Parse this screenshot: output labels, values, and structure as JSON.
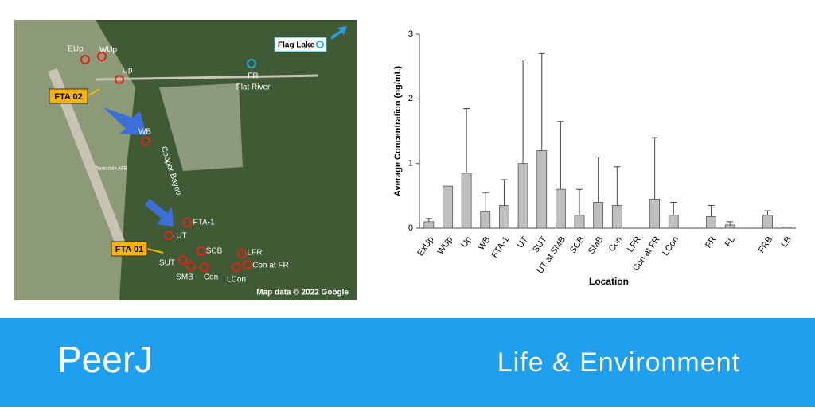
{
  "chart_data": {
    "type": "bar",
    "x_label": "Location",
    "y_label": "Average Concentration (ng/mL)",
    "categories": [
      "ExUp",
      "WUp",
      "Up",
      "WB",
      "FTA-1",
      "UT",
      "SUT",
      "UT at SMB",
      "SCB",
      "SMB",
      "Con",
      "LFR",
      "Con at FR",
      "LCon",
      null,
      "FR",
      "FL",
      null,
      "FRB",
      "LB"
    ],
    "values": [
      0.1,
      0.65,
      0.85,
      0.25,
      0.35,
      1.0,
      1.2,
      0.6,
      0.2,
      0.4,
      0.35,
      null,
      0.45,
      0.2,
      null,
      0.18,
      0.05,
      null,
      0.2,
      0.02
    ],
    "errors": [
      0.05,
      null,
      1.0,
      0.3,
      0.4,
      1.6,
      1.5,
      1.05,
      0.4,
      0.7,
      0.6,
      null,
      0.95,
      0.2,
      null,
      0.17,
      0.05,
      null,
      0.07,
      null
    ],
    "color": "#bfbfbf",
    "ylim": [
      0,
      3
    ],
    "yticks": [
      0,
      1,
      2,
      3
    ]
  },
  "map": {
    "labels": [
      "EUp",
      "WUp",
      "Up",
      "FTA 02",
      "WB",
      "Cooper Bayou",
      "Barksdale AFB",
      "FTA-1",
      "UT",
      "FTA 01",
      "SUT",
      "SMB",
      "SCB",
      "Con",
      "LFR",
      "Con at FR",
      "LCon",
      "FR",
      "Flat River",
      "Flag Lake"
    ],
    "credit": "Map data © 2022 Google"
  },
  "banner": {
    "logo": "PeerJ",
    "section": "Life & Environment"
  }
}
